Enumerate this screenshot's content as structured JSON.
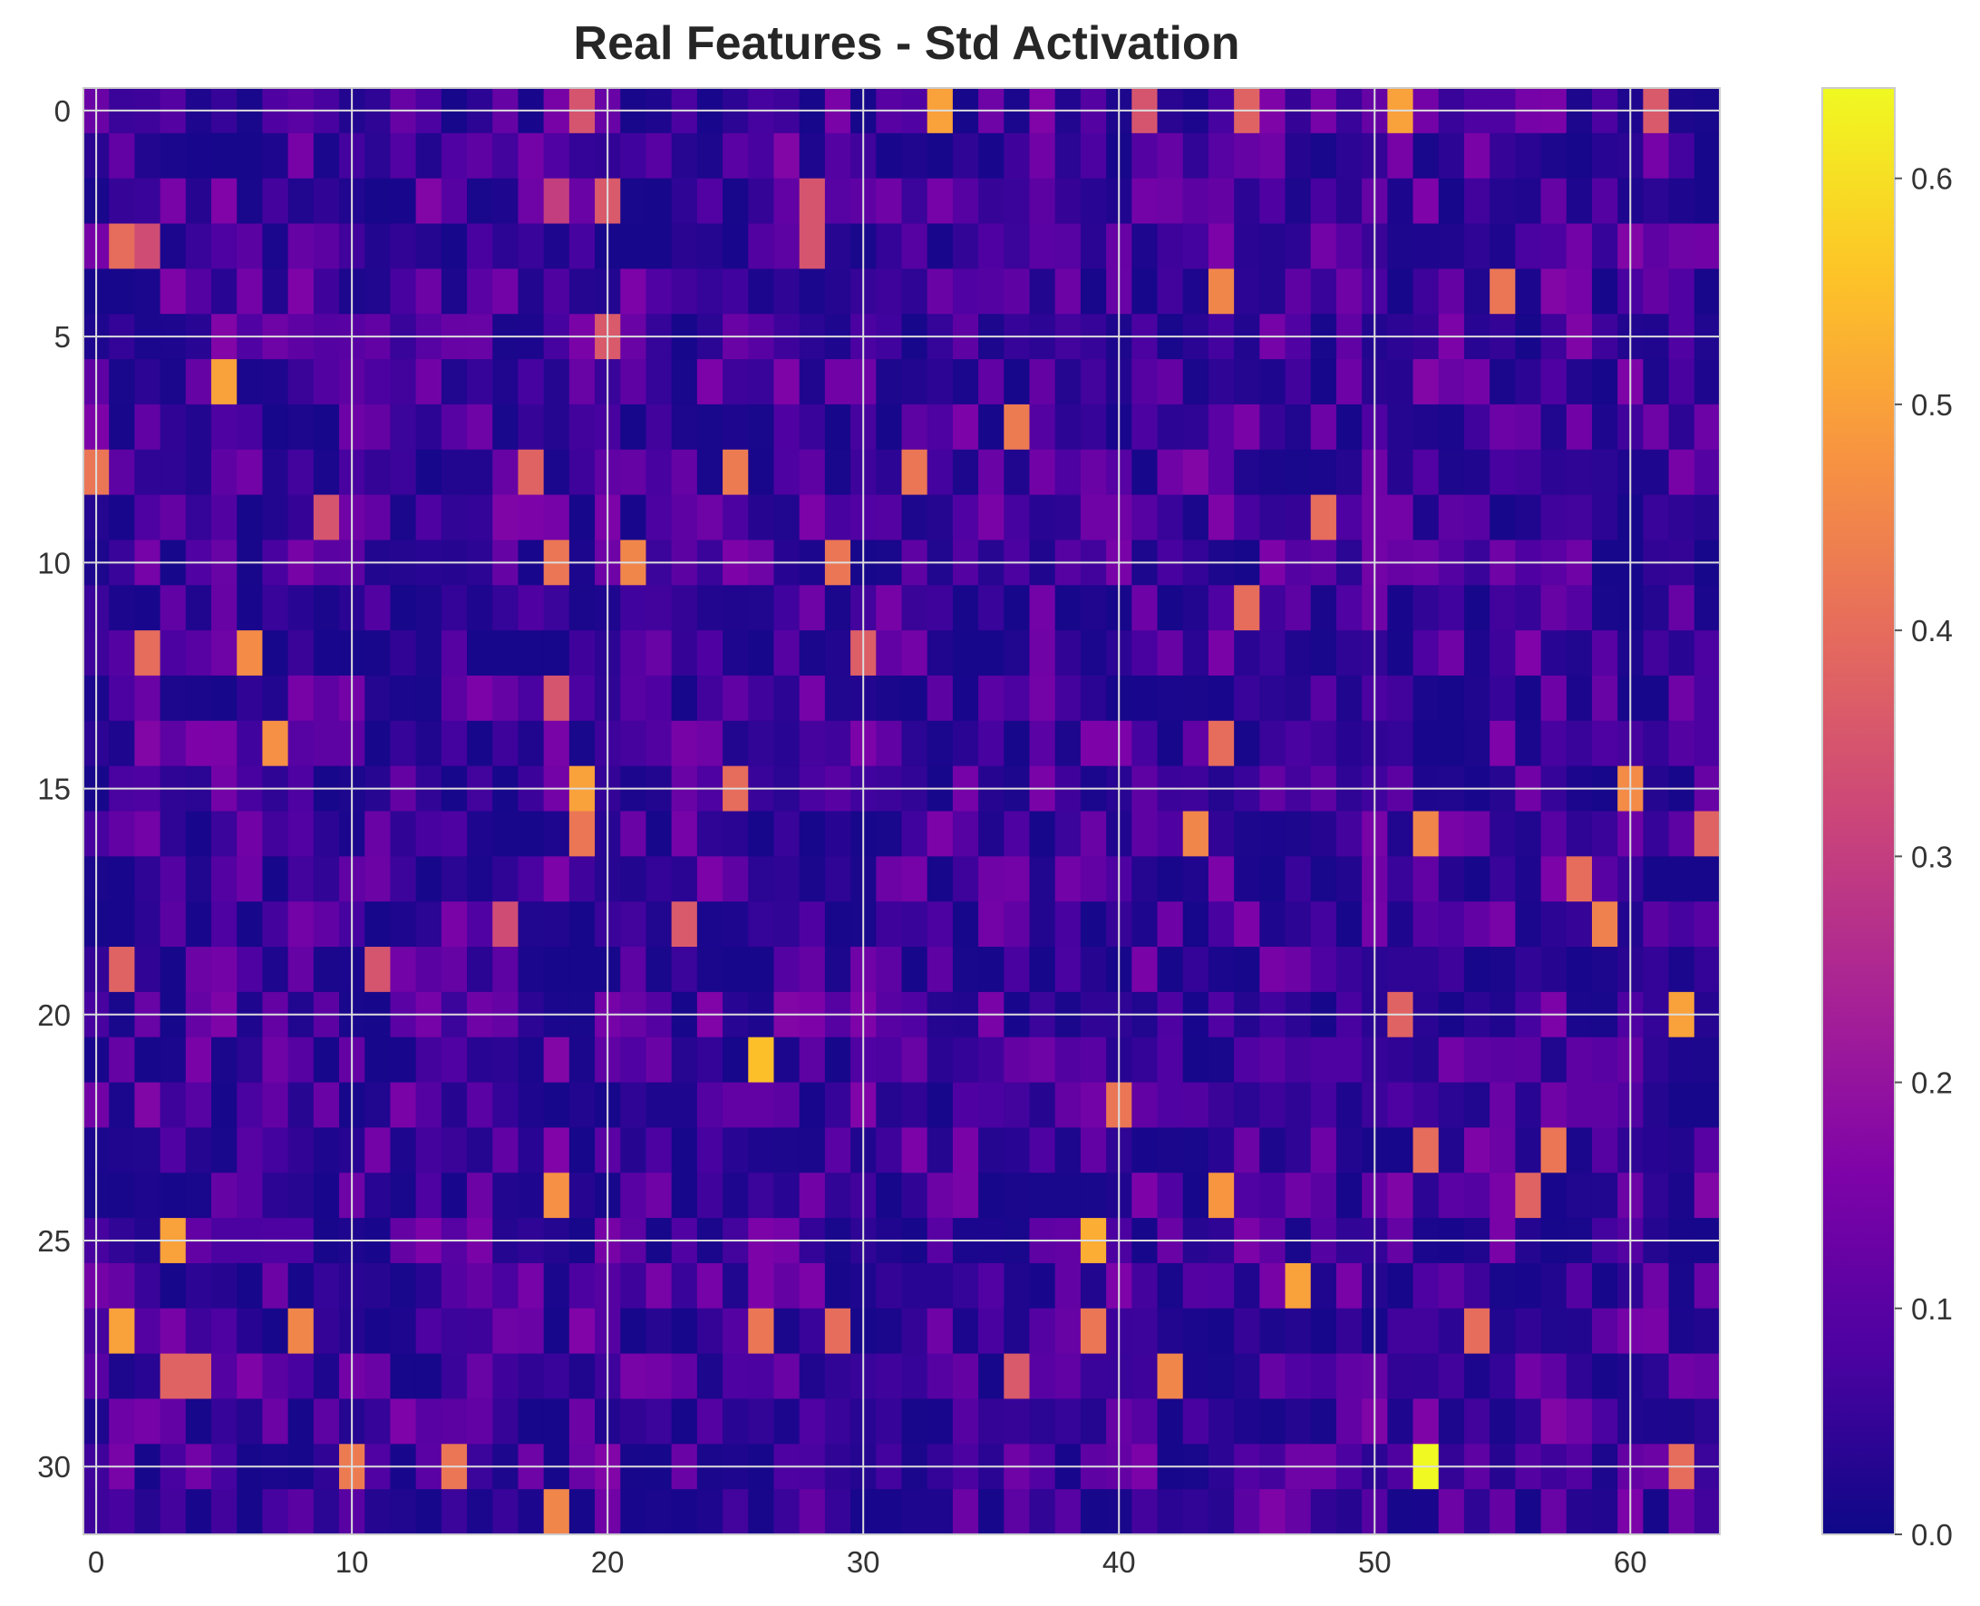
{
  "chart_data": {
    "type": "heatmap",
    "title": "Real Features - Std Activation",
    "xlabel": "",
    "ylabel": "",
    "rows": 32,
    "cols": 64,
    "x_ticks": [
      0,
      10,
      20,
      30,
      40,
      50,
      60
    ],
    "y_ticks": [
      0,
      5,
      10,
      15,
      20,
      25,
      30
    ],
    "colorbar": {
      "min": 0.0,
      "max": 0.64,
      "ticks": [
        0.0,
        0.1,
        0.2,
        0.3,
        0.4,
        0.5,
        0.6
      ],
      "colormap": "plasma"
    },
    "grid": true,
    "background_level": 0.06,
    "highlights": [
      {
        "row": 0,
        "col": 19,
        "value": 0.35
      },
      {
        "row": 0,
        "col": 33,
        "value": 0.5
      },
      {
        "row": 0,
        "col": 41,
        "value": 0.35
      },
      {
        "row": 0,
        "col": 45,
        "value": 0.38
      },
      {
        "row": 0,
        "col": 51,
        "value": 0.5
      },
      {
        "row": 0,
        "col": 61,
        "value": 0.36
      },
      {
        "row": 2,
        "col": 18,
        "value": 0.3
      },
      {
        "row": 2,
        "col": 20,
        "value": 0.36
      },
      {
        "row": 2,
        "col": 28,
        "value": 0.35
      },
      {
        "row": 3,
        "col": 1,
        "value": 0.4
      },
      {
        "row": 3,
        "col": 2,
        "value": 0.33
      },
      {
        "row": 3,
        "col": 28,
        "value": 0.35
      },
      {
        "row": 4,
        "col": 44,
        "value": 0.45
      },
      {
        "row": 4,
        "col": 55,
        "value": 0.42
      },
      {
        "row": 5,
        "col": 20,
        "value": 0.36
      },
      {
        "row": 6,
        "col": 5,
        "value": 0.5
      },
      {
        "row": 7,
        "col": 36,
        "value": 0.43
      },
      {
        "row": 8,
        "col": 0,
        "value": 0.42
      },
      {
        "row": 8,
        "col": 17,
        "value": 0.38
      },
      {
        "row": 8,
        "col": 25,
        "value": 0.43
      },
      {
        "row": 8,
        "col": 32,
        "value": 0.42
      },
      {
        "row": 9,
        "col": 9,
        "value": 0.35
      },
      {
        "row": 9,
        "col": 48,
        "value": 0.4
      },
      {
        "row": 10,
        "col": 18,
        "value": 0.42
      },
      {
        "row": 10,
        "col": 21,
        "value": 0.45
      },
      {
        "row": 10,
        "col": 29,
        "value": 0.42
      },
      {
        "row": 11,
        "col": 45,
        "value": 0.4
      },
      {
        "row": 12,
        "col": 2,
        "value": 0.4
      },
      {
        "row": 12,
        "col": 6,
        "value": 0.46
      },
      {
        "row": 12,
        "col": 30,
        "value": 0.37
      },
      {
        "row": 13,
        "col": 18,
        "value": 0.35
      },
      {
        "row": 14,
        "col": 7,
        "value": 0.47
      },
      {
        "row": 14,
        "col": 44,
        "value": 0.4
      },
      {
        "row": 15,
        "col": 19,
        "value": 0.5
      },
      {
        "row": 15,
        "col": 25,
        "value": 0.4
      },
      {
        "row": 15,
        "col": 60,
        "value": 0.46
      },
      {
        "row": 16,
        "col": 19,
        "value": 0.42
      },
      {
        "row": 16,
        "col": 43,
        "value": 0.45
      },
      {
        "row": 16,
        "col": 52,
        "value": 0.45
      },
      {
        "row": 16,
        "col": 63,
        "value": 0.38
      },
      {
        "row": 17,
        "col": 58,
        "value": 0.4
      },
      {
        "row": 18,
        "col": 16,
        "value": 0.33
      },
      {
        "row": 18,
        "col": 23,
        "value": 0.36
      },
      {
        "row": 18,
        "col": 59,
        "value": 0.44
      },
      {
        "row": 19,
        "col": 1,
        "value": 0.38
      },
      {
        "row": 19,
        "col": 11,
        "value": 0.35
      },
      {
        "row": 20,
        "col": 62,
        "value": 0.5
      },
      {
        "row": 20,
        "col": 51,
        "value": 0.38
      },
      {
        "row": 21,
        "col": 26,
        "value": 0.55
      },
      {
        "row": 22,
        "col": 40,
        "value": 0.42
      },
      {
        "row": 23,
        "col": 52,
        "value": 0.4
      },
      {
        "row": 23,
        "col": 57,
        "value": 0.42
      },
      {
        "row": 24,
        "col": 18,
        "value": 0.47
      },
      {
        "row": 24,
        "col": 44,
        "value": 0.48
      },
      {
        "row": 24,
        "col": 56,
        "value": 0.38
      },
      {
        "row": 25,
        "col": 3,
        "value": 0.5
      },
      {
        "row": 25,
        "col": 39,
        "value": 0.52
      },
      {
        "row": 26,
        "col": 47,
        "value": 0.5
      },
      {
        "row": 27,
        "col": 1,
        "value": 0.5
      },
      {
        "row": 27,
        "col": 8,
        "value": 0.45
      },
      {
        "row": 27,
        "col": 26,
        "value": 0.42
      },
      {
        "row": 27,
        "col": 29,
        "value": 0.4
      },
      {
        "row": 27,
        "col": 39,
        "value": 0.42
      },
      {
        "row": 27,
        "col": 54,
        "value": 0.4
      },
      {
        "row": 28,
        "col": 3,
        "value": 0.38
      },
      {
        "row": 28,
        "col": 4,
        "value": 0.38
      },
      {
        "row": 28,
        "col": 42,
        "value": 0.45
      },
      {
        "row": 28,
        "col": 36,
        "value": 0.36
      },
      {
        "row": 30,
        "col": 10,
        "value": 0.43
      },
      {
        "row": 30,
        "col": 14,
        "value": 0.42
      },
      {
        "row": 30,
        "col": 52,
        "value": 0.64
      },
      {
        "row": 30,
        "col": 62,
        "value": 0.4
      },
      {
        "row": 31,
        "col": 18,
        "value": 0.45
      }
    ]
  }
}
